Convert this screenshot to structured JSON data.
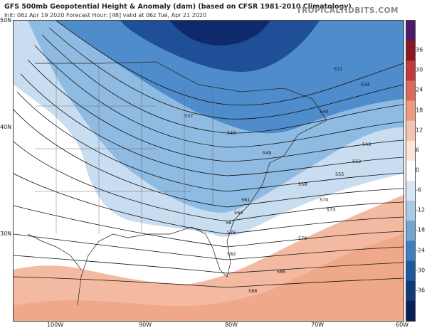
{
  "header": {
    "title": "GFS 500mb Geopotential Height & Anomaly (dam) (based on CFSR 1981-2010 Climatology)",
    "subtitle": "Init: 06z Apr 19 2020   Forecast Hour: [48]   valid at 06z Tue, Apr 21 2020",
    "brand": "TROPICALTIDBITS.COM"
  },
  "axes": {
    "lat_labels": [
      "50N",
      "40N",
      "30N"
    ],
    "lon_labels": [
      "100W",
      "90W",
      "80W",
      "70W",
      "60W"
    ]
  },
  "colorbar": {
    "ticks": [
      "36",
      "30",
      "24",
      "18",
      "12",
      "6",
      "0",
      "-6",
      "-12",
      "-18",
      "-24",
      "-30",
      "-36"
    ],
    "colors": [
      "#4b1a6b",
      "#8e1620",
      "#c23a3a",
      "#d96a5a",
      "#ec9a80",
      "#f6c4ae",
      "#fde6d8",
      "#ffffff",
      "#d6e6f4",
      "#a8cbe6",
      "#6fa6d4",
      "#3f7fc0",
      "#1f5aa0",
      "#0f3a7a",
      "#0a1f55"
    ]
  },
  "contours": {
    "labels": [
      "531",
      "534",
      "537",
      "540",
      "543",
      "546",
      "549",
      "552",
      "555",
      "558",
      "561",
      "564",
      "567",
      "570",
      "573",
      "576",
      "579",
      "582",
      "585",
      "588"
    ]
  },
  "chart_data": {
    "type": "heatmap",
    "title": "GFS 500mb Geopotential Height & Anomaly (dam) (based on CFSR 1981-2010 Climatology)",
    "x_ticks": [
      "100W",
      "90W",
      "80W",
      "70W",
      "60W"
    ],
    "y_ticks": [
      "50N",
      "40N",
      "30N"
    ],
    "colorbar_range": [
      -36,
      36
    ],
    "colorbar_step": 6,
    "contour_levels_dam": [
      531,
      534,
      537,
      540,
      543,
      546,
      549,
      552,
      555,
      558,
      561,
      564,
      567,
      570,
      573,
      576,
      579,
      582,
      585,
      588
    ]
  }
}
